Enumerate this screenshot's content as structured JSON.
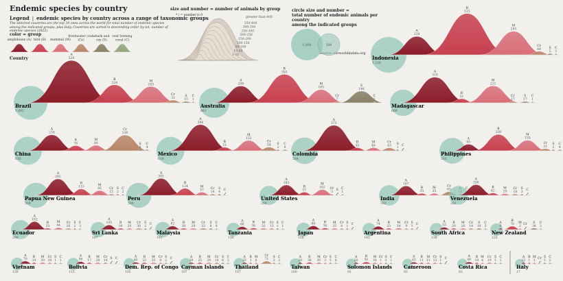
{
  "title": "Endemic species by country",
  "legend": {
    "label": "Legend",
    "separator": "|",
    "subtitle": "endemic species by country across a range of taxonomic groups",
    "description": "The selected countries are the top 30 ones across the world for total number of endemic species among the indicated groups, plus Italy. Countries are sorted in descending order by tot. number of endemic species (2022)",
    "color_title": "color = group",
    "country_title": "Country",
    "size_title": "size and number = number of animals by group",
    "size_note": "* / = number is 0",
    "size_steps": [
      "greater than 400",
      "350-400",
      "300-350",
      "250-300",
      "200-250",
      "150-200",
      "100-150",
      "50-100",
      "10-50",
      "1-10"
    ],
    "circle_title_1": "circle size and number =",
    "circle_title_2": "total number of endemic animals per country",
    "circle_title_3": "among the indicated groups",
    "circle_examples": [
      "1,000",
      "500"
    ],
    "source": "Source: ourworldindata.org"
  },
  "groups": [
    {
      "key": "A",
      "name": "amphibians (A)",
      "color": "#8c1c2a"
    },
    {
      "key": "B",
      "name": "bird (B)",
      "color": "#c8404f"
    },
    {
      "key": "M",
      "name": "mammal (M)",
      "color": "#d96f7a"
    },
    {
      "key": "Cr",
      "name": "freshwater crab (Cr)",
      "color": "#b9876a"
    },
    {
      "key": "S",
      "name": "shark and ray (S)",
      "color": "#8a8066"
    },
    {
      "key": "C",
      "name": "reef forming coral (C)",
      "color": "#93a581"
    }
  ],
  "chart_data": {
    "type": "area",
    "year": 2022,
    "categories": [
      "A",
      "B",
      "M",
      "Cr",
      "S",
      "C"
    ],
    "countries": [
      {
        "name": "Indonesia",
        "total": "1,226",
        "values": [
          229,
          515,
          293,
          44,
          5,
          1
        ]
      },
      {
        "name": "Brazil",
        "total": "1,095",
        "values": [
          528,
          224,
          203,
          33,
          15,
          1
        ]
      },
      {
        "name": "Australia",
        "total": "881",
        "values": [
          209,
          355,
          165,
          7,
          146,
          1
        ]
      },
      {
        "name": "Madagascar",
        "total": "669",
        "values": [
          319,
          51,
          211,
          17,
          17,
          1
        ]
      },
      {
        "name": "China",
        "total": "630",
        "values": [
          234,
          76,
          80,
          230,
          6,
          4
        ]
      },
      {
        "name": "Mexico",
        "total": "619",
        "values": [
          384,
          51,
          152,
          54,
          2,
          6
        ]
      },
      {
        "name": "Colombia",
        "total": "564",
        "values": [
          373,
          45,
          46,
          43,
          1,
          0
        ]
      },
      {
        "name": "Philippines",
        "total": "533",
        "values": [
          95,
          239,
          155,
          31,
          2,
          4
        ]
      },
      {
        "name": "Papua New Guinea",
        "total": "509",
        "values": [
          292,
          113,
          85,
          15,
          2,
          2
        ]
      },
      {
        "name": "Peru",
        "total": "500",
        "values": [
          301,
          124,
          57,
          14,
          4,
          0
        ]
      },
      {
        "name": "United States",
        "total": "286",
        "values": [
          183,
          57,
          102,
          3,
          0,
          1
        ]
      },
      {
        "name": "India",
        "total": "333",
        "values": [
          167,
          35,
          35,
          65,
          14,
          3
        ]
      },
      {
        "name": "Venezuela",
        "total": "282",
        "values": [
          190,
          42,
          29,
          18,
          3,
          0
        ]
      },
      {
        "name": "Ecuador",
        "total": "290",
        "values": [
          182,
          33,
          44,
          26,
          2,
          3
        ]
      },
      {
        "name": "Sri Lanka",
        "total": "187",
        "values": [
          105,
          30,
          20,
          30,
          2,
          0
        ]
      },
      {
        "name": "Malaysia",
        "total": "191",
        "values": [
          82,
          30,
          29,
          33,
          8,
          4
        ]
      },
      {
        "name": "Tanzania",
        "total": "150",
        "values": [
          68,
          36,
          31,
          13,
          1,
          1
        ]
      },
      {
        "name": "Japan",
        "total": "156",
        "values": [
          86,
          36,
          25,
          8,
          1,
          0
        ]
      },
      {
        "name": "Argentina",
        "total": "143",
        "values": [
          74,
          25,
          34,
          9,
          1,
          0
        ]
      },
      {
        "name": "South Africa",
        "total": "138",
        "values": [
          53,
          20,
          28,
          14,
          18,
          5
        ]
      },
      {
        "name": "New Zealand",
        "total": "125",
        "values": [
          9,
          78,
          2,
          0,
          34,
          2
        ]
      },
      {
        "name": "Vietnam",
        "total": "126",
        "values": [
          70,
          14,
          30,
          10,
          1,
          1
        ]
      },
      {
        "name": "Bolivia",
        "total": "115",
        "values": [
          56,
          17,
          28,
          14,
          0,
          0
        ]
      },
      {
        "name": "Dem. Rep. of Congo",
        "total": "105",
        "values": [
          40,
          22,
          33,
          8,
          2,
          0
        ]
      },
      {
        "name": "Cayman Islands",
        "total": "107",
        "values": [
          29,
          25,
          29,
          16,
          6,
          2
        ]
      },
      {
        "name": "Thailand",
        "total": "107",
        "values": [
          25,
          1,
          6,
          71,
          2,
          2
        ]
      },
      {
        "name": "Taiwan",
        "total": "100",
        "values": [
          20,
          38,
          30,
          3,
          3,
          6
        ]
      },
      {
        "name": "Solomon Islands",
        "total": "91",
        "values": [
          20,
          50,
          18,
          1,
          1,
          1
        ]
      },
      {
        "name": "Cameroon",
        "total": "85",
        "values": [
          43,
          11,
          11,
          12,
          1,
          0
        ]
      },
      {
        "name": "Costa Rica",
        "total": "83",
        "values": [
          48,
          10,
          4,
          19,
          1,
          1
        ]
      },
      {
        "name": "Italy",
        "total": "17",
        "values": [
          12,
          1,
          1,
          0,
          1,
          2
        ]
      }
    ]
  }
}
